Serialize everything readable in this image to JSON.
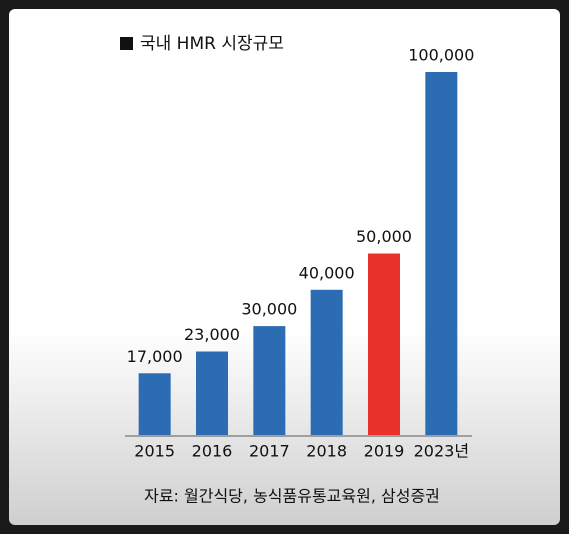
{
  "chart_data": {
    "type": "bar",
    "title": "국내 HMR 시장규모",
    "categories": [
      "2015",
      "2016",
      "2017",
      "2018",
      "2019",
      "2023년"
    ],
    "values": [
      17000,
      23000,
      30000,
      40000,
      50000,
      100000
    ],
    "value_labels": [
      "17,000",
      "23,000",
      "30,000",
      "40,000",
      "50,000",
      "100,000"
    ],
    "colors": [
      "#2b6cb3",
      "#2b6cb3",
      "#2b6cb3",
      "#2b6cb3",
      "#e8312b",
      "#2b6cb3"
    ],
    "ylim": [
      0,
      100000
    ],
    "source": "자료: 월간식당, 농식품유통교육원, 삼성증권"
  }
}
